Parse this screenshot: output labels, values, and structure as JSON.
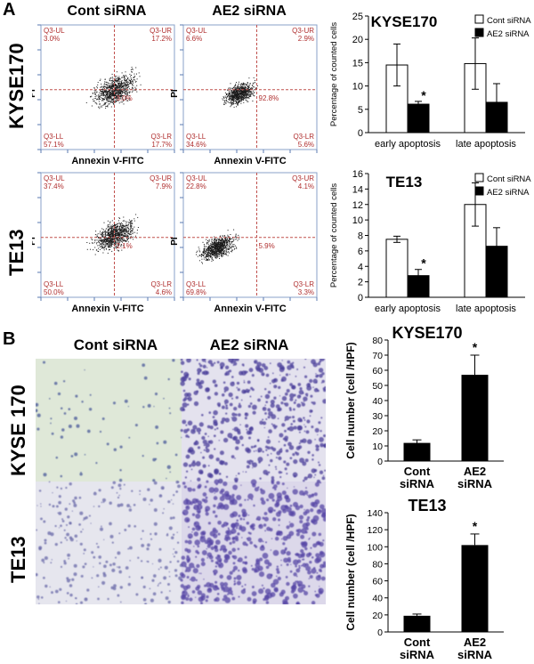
{
  "panel_labels": {
    "a": "A",
    "b": "B"
  },
  "panel_a": {
    "column_titles": [
      "Cont siRNA",
      "AE2 siRNA"
    ],
    "row_labels": [
      "KYSE170",
      "TE13"
    ],
    "x_axis_label": "Annexin V-FITC",
    "y_axis_label": "PI",
    "flow_plots": [
      {
        "quadrants": {
          "ul": "Q3-UL\n3.0%",
          "ur": "Q3-UR\n17.2%",
          "ll": "Q3-LL\n57.1%",
          "lr": "Q3-LR\n17.7%",
          "center": "3.0%"
        },
        "color": "#1a1a1a"
      },
      {
        "quadrants": {
          "ul": "Q3-UL\n6.6%",
          "ur": "Q3-UR\n2.9%",
          "ll": "Q3-LL\n34.6%",
          "lr": "Q3-LR\n5.6%",
          "center": "92.8%"
        },
        "color": "#1a1a1a"
      },
      {
        "quadrants": {
          "ul": "Q3-UL\n37.4%",
          "ur": "Q3-UR\n7.9%",
          "ll": "Q3-LL\n50.0%",
          "lr": "Q3-LR\n4.6%",
          "center": "2.1%"
        },
        "color": "#1a1a1a"
      },
      {
        "quadrants": {
          "ul": "Q3-UL\n22.8%",
          "ur": "Q3-UR\n4.1%",
          "ll": "Q3-LL\n69.8%",
          "lr": "Q3-LR\n3.3%",
          "center": "5.9%"
        },
        "color": "#1a1a1a"
      }
    ],
    "quadrant_line_color": "#c0504d"
  },
  "panel_b": {
    "column_titles": [
      "Cont siRNA",
      "AE2 siRNA"
    ],
    "row_labels": [
      "KYSE 170",
      "TE13"
    ]
  },
  "chart_data": [
    {
      "type": "bar",
      "title": "KYSE170",
      "ylabel": "Percentage of counted cells",
      "categories": [
        "early apoptosis",
        "late apoptosis"
      ],
      "ylim": [
        0,
        25
      ],
      "yticks": [
        0,
        5,
        10,
        15,
        20,
        25
      ],
      "legend_position": "top-right",
      "series": [
        {
          "name": "Cont siRNA",
          "values": [
            14.5,
            14.8
          ],
          "errors": [
            4.5,
            5.5
          ],
          "color": "#ffffff"
        },
        {
          "name": "AE2 siRNA",
          "values": [
            6.1,
            6.5
          ],
          "errors": [
            0.6,
            4.0
          ],
          "color": "#000000"
        }
      ],
      "annotations": [
        {
          "text": "*",
          "category": 0,
          "series": 1
        }
      ]
    },
    {
      "type": "bar",
      "title": "TE13",
      "ylabel": "Percentage of counted cells",
      "categories": [
        "early apoptosis",
        "late apoptosis"
      ],
      "ylim": [
        0,
        16
      ],
      "yticks": [
        0,
        2,
        4,
        6,
        8,
        10,
        12,
        14,
        16
      ],
      "legend_position": "top-right",
      "series": [
        {
          "name": "Cont siRNA",
          "values": [
            7.5,
            12.0
          ],
          "errors": [
            0.4,
            2.8
          ],
          "color": "#ffffff"
        },
        {
          "name": "AE2 siRNA",
          "values": [
            2.8,
            6.6
          ],
          "errors": [
            0.8,
            2.4
          ],
          "color": "#000000"
        }
      ],
      "annotations": [
        {
          "text": "*",
          "category": 0,
          "series": 1
        }
      ]
    },
    {
      "type": "bar",
      "title": "KYSE170",
      "ylabel": "Cell number (cell /HPF)",
      "categories": [
        "Cont\nsiRNA",
        "AE2\nsiRNA"
      ],
      "ylim": [
        0,
        80
      ],
      "yticks": [
        0,
        10,
        20,
        30,
        40,
        50,
        60,
        70,
        80
      ],
      "values": [
        12,
        57
      ],
      "errors": [
        2,
        13
      ],
      "color": "#000000",
      "annotations": [
        {
          "text": "*",
          "category": 1
        }
      ]
    },
    {
      "type": "bar",
      "title": "TE13",
      "ylabel": "Cell number (cell /HPF)",
      "categories": [
        "Cont\nsiRNA",
        "AE2\nsiRNA"
      ],
      "ylim": [
        0,
        140
      ],
      "yticks": [
        0,
        20,
        40,
        60,
        80,
        100,
        120,
        140
      ],
      "values": [
        19,
        102
      ],
      "errors": [
        2,
        13
      ],
      "color": "#000000",
      "annotations": [
        {
          "text": "*",
          "category": 1
        }
      ]
    }
  ]
}
